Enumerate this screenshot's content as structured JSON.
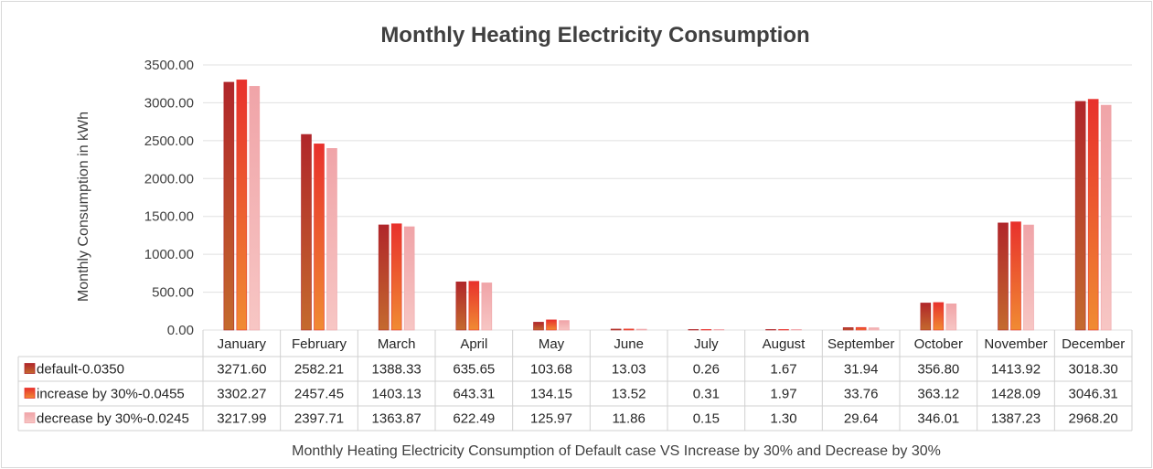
{
  "chart_data": {
    "type": "bar",
    "title": "Monthly Heating Electricity Consumption",
    "ylabel": "Monthly Consumption in kWh",
    "xlabel": "Monthly Heating Electricity Consumption of Default case VS Increase by 30% and Decrease by 30%",
    "ylim": [
      0,
      3500
    ],
    "yticks": [
      "0.00",
      "500.00",
      "1000.00",
      "1500.00",
      "2000.00",
      "2500.00",
      "3000.00",
      "3500.00"
    ],
    "grid": true,
    "categories": [
      "January",
      "February",
      "March",
      "April",
      "May",
      "June",
      "July",
      "August",
      "September",
      "October",
      "November",
      "December"
    ],
    "series": [
      {
        "name": "default-0.0350",
        "values": [
          3271.6,
          2582.21,
          1388.33,
          635.65,
          103.68,
          13.03,
          0.26,
          1.67,
          31.94,
          356.8,
          1413.92,
          3018.3
        ],
        "labels": [
          "3271.60",
          "2582.21",
          "1388.33",
          "635.65",
          "103.68",
          "13.03",
          "0.26",
          "1.67",
          "31.94",
          "356.80",
          "1413.92",
          "3018.30"
        ],
        "color_top": "#b0262a",
        "color_bottom": "#c46a2e"
      },
      {
        "name": "increase by 30%-0.0455",
        "values": [
          3302.27,
          2457.45,
          1403.13,
          643.31,
          134.15,
          13.52,
          0.31,
          1.97,
          33.76,
          363.12,
          1428.09,
          3046.31
        ],
        "labels": [
          "3302.27",
          "2457.45",
          "1403.13",
          "643.31",
          "134.15",
          "13.52",
          "0.31",
          "1.97",
          "33.76",
          "363.12",
          "1428.09",
          "3046.31"
        ],
        "color_top": "#e8312c",
        "color_bottom": "#f08b33"
      },
      {
        "name": "decrease by 30%-0.0245",
        "values": [
          3217.99,
          2397.71,
          1363.87,
          622.49,
          125.97,
          11.86,
          0.15,
          1.3,
          29.64,
          346.01,
          1387.23,
          2968.2
        ],
        "labels": [
          "3217.99",
          "2397.71",
          "1363.87",
          "622.49",
          "125.97",
          "11.86",
          "0.15",
          "1.30",
          "29.64",
          "346.01",
          "1387.23",
          "2968.20"
        ],
        "color_top": "#f0a4a8",
        "color_bottom": "#f7c6c4"
      }
    ]
  }
}
